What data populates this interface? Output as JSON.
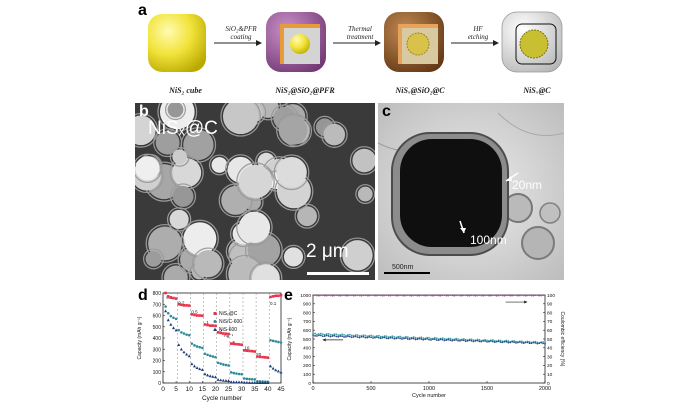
{
  "panels": {
    "a": "a",
    "b": "b",
    "c": "c",
    "d": "d",
    "e": "e"
  },
  "schematic": {
    "stages": [
      "NiS₂ cube",
      "NiS₂@SiO₂@PFR",
      "NiSₓ@SiO₂@C",
      "NiSₓ@C"
    ],
    "steps": [
      {
        "line1": "SiO₂&PFR",
        "line2": "coating"
      },
      {
        "line1": "Thermal",
        "line2": "treatment"
      },
      {
        "line1": "HF",
        "line2": "etching"
      }
    ],
    "colors": {
      "core": "#f2e33a",
      "pfr": "#8a4a8c",
      "carbon": "#7a4a22",
      "shell_white": "#e8e8e8"
    }
  },
  "sem": {
    "label": "NiSₓ@C",
    "scale": "2 μm"
  },
  "tem": {
    "ann1": "20nm",
    "ann2": "100nm",
    "scale": "500nm"
  },
  "chart_data": [
    {
      "type": "scatter",
      "panel": "d",
      "xlabel": "Cycle number",
      "ylabel": "Capacity (mAh g⁻¹)",
      "xlim": [
        0,
        45
      ],
      "ylim": [
        0,
        800
      ],
      "xticks": [
        0,
        5,
        10,
        15,
        20,
        25,
        30,
        35,
        40,
        45
      ],
      "yticks": [
        0,
        100,
        200,
        300,
        400,
        500,
        600,
        700,
        800
      ],
      "rate_labels": [
        {
          "text": "0.1",
          "x": 2.5,
          "y": 745
        },
        {
          "text": "0.2",
          "x": 7,
          "y": 700
        },
        {
          "text": "0.5",
          "x": 12,
          "y": 620
        },
        {
          "text": "1",
          "x": 17,
          "y": 525
        },
        {
          "text": "2",
          "x": 22,
          "y": 450
        },
        {
          "text": "Ag⁻¹",
          "x": 25,
          "y": 410
        },
        {
          "text": "5",
          "x": 27,
          "y": 345
        },
        {
          "text": "10",
          "x": 32,
          "y": 300
        },
        {
          "text": "20",
          "x": 36.5,
          "y": 240
        },
        {
          "text": "0.1",
          "x": 42,
          "y": 695
        }
      ],
      "series": [
        {
          "name": "NiSₓ@C",
          "color": "#e8334a",
          "marker": "square",
          "x": [
            1,
            2,
            3,
            4,
            5,
            6,
            7,
            8,
            9,
            10,
            11,
            12,
            13,
            14,
            15,
            16,
            17,
            18,
            19,
            20,
            21,
            22,
            23,
            24,
            25,
            26,
            27,
            28,
            29,
            30,
            31,
            32,
            33,
            34,
            35,
            36,
            37,
            38,
            39,
            40,
            41,
            42,
            43,
            44,
            45
          ],
          "values": [
            800,
            770,
            760,
            755,
            750,
            700,
            695,
            690,
            690,
            688,
            610,
            605,
            600,
            600,
            598,
            520,
            515,
            510,
            510,
            508,
            450,
            445,
            440,
            438,
            436,
            350,
            348,
            345,
            343,
            340,
            290,
            287,
            285,
            283,
            280,
            235,
            232,
            230,
            228,
            225,
            765,
            770,
            775,
            775,
            780
          ]
        },
        {
          "name": "NiS/C-600",
          "color": "#2e8b9a",
          "marker": "circle",
          "x": [
            1,
            2,
            3,
            4,
            5,
            6,
            7,
            8,
            9,
            10,
            11,
            12,
            13,
            14,
            15,
            16,
            17,
            18,
            19,
            20,
            21,
            22,
            23,
            24,
            25,
            26,
            27,
            28,
            29,
            30,
            31,
            32,
            33,
            34,
            35,
            36,
            37,
            38,
            39,
            40,
            41,
            42,
            43,
            44,
            45
          ],
          "values": [
            680,
            620,
            595,
            580,
            570,
            470,
            450,
            440,
            430,
            425,
            350,
            335,
            325,
            318,
            312,
            260,
            250,
            242,
            236,
            230,
            180,
            172,
            165,
            160,
            156,
            95,
            88,
            84,
            80,
            78,
            40,
            37,
            35,
            33,
            32,
            15,
            14,
            13,
            12,
            11,
            380,
            375,
            370,
            365,
            360
          ]
        },
        {
          "name": "NiS-600",
          "color": "#1c3c78",
          "marker": "triangle",
          "x": [
            1,
            2,
            3,
            4,
            5,
            6,
            7,
            8,
            9,
            10,
            11,
            12,
            13,
            14,
            15,
            16,
            17,
            18,
            19,
            20,
            21,
            22,
            23,
            24,
            25,
            26,
            27,
            28,
            29,
            30,
            31,
            32,
            33,
            34,
            35,
            36,
            37,
            38,
            39,
            40,
            41,
            42,
            43,
            44,
            45
          ],
          "values": [
            640,
            560,
            520,
            490,
            470,
            340,
            300,
            275,
            255,
            240,
            170,
            150,
            135,
            125,
            118,
            80,
            70,
            62,
            57,
            53,
            30,
            26,
            23,
            21,
            20,
            10,
            9,
            8,
            8,
            7,
            4,
            4,
            3,
            3,
            3,
            2,
            2,
            2,
            2,
            2,
            150,
            130,
            115,
            105,
            95
          ]
        }
      ]
    },
    {
      "type": "scatter",
      "panel": "e",
      "xlabel": "Cycle number",
      "ylabel": "Capacity (mAh g⁻¹)",
      "y2label": "Coulombic efficiency (%)",
      "xlim": [
        0,
        2000
      ],
      "ylim": [
        0,
        1000
      ],
      "y2lim": [
        0,
        100
      ],
      "xticks": [
        0,
        500,
        1000,
        1500,
        2000
      ],
      "yticks": [
        0,
        100,
        200,
        300,
        400,
        500,
        600,
        700,
        800,
        900,
        1000
      ],
      "y2ticks": [
        0,
        10,
        20,
        30,
        40,
        50,
        60,
        70,
        80,
        90,
        100
      ],
      "series": [
        {
          "axis": "right",
          "color": "#8a5a8a",
          "y_start": 99.5,
          "y_end": 99.5,
          "x_start": 1,
          "x_end": 2000
        },
        {
          "axis": "left",
          "color": "#3aa0a8",
          "y_start": 560,
          "y_end": 460,
          "x_start": 1,
          "x_end": 2000
        },
        {
          "axis": "left",
          "color": "#2c4a84",
          "y_start": 540,
          "y_end": 450,
          "x_start": 1,
          "x_end": 2000
        }
      ]
    }
  ]
}
